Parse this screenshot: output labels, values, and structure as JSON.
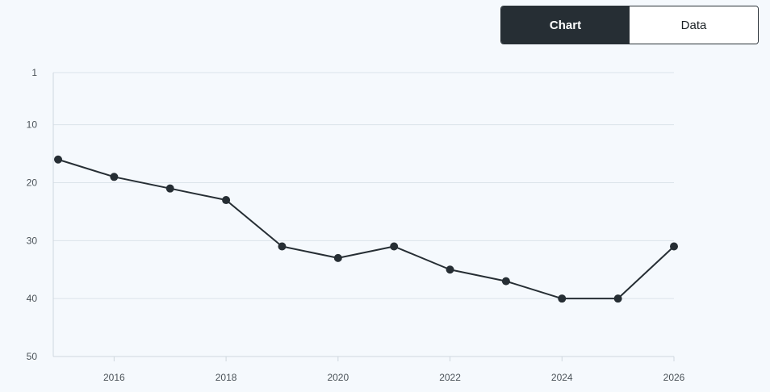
{
  "toggle": {
    "chart_label": "Chart",
    "data_label": "Data"
  },
  "colors": {
    "background": "#f5f9fd",
    "line": "#262e34",
    "grid": "#dbe3ea",
    "axis": "#cfd7de"
  },
  "chart_data": {
    "type": "line",
    "title": "",
    "xlabel": "",
    "ylabel": "",
    "y_inverted": true,
    "xlim": [
      2015,
      2026
    ],
    "ylim": [
      1,
      50
    ],
    "x_ticks": [
      2016,
      2018,
      2020,
      2022,
      2024,
      2026
    ],
    "y_ticks": [
      1,
      10,
      20,
      30,
      40,
      50
    ],
    "grid": true,
    "series": [
      {
        "x": [
          2015,
          2016,
          2017,
          2018,
          2019,
          2020,
          2021,
          2022,
          2023,
          2024,
          2025,
          2026
        ],
        "values": [
          16,
          19,
          21,
          23,
          31,
          33,
          31,
          35,
          37,
          40,
          40,
          31
        ]
      }
    ]
  }
}
